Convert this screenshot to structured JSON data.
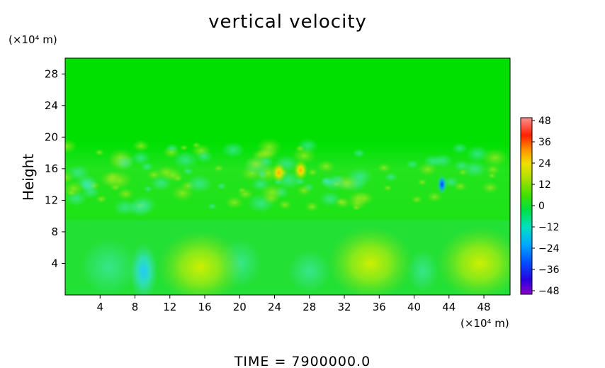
{
  "chart_data": {
    "type": "heatmap",
    "title": "vertical velocity",
    "ylabel": "Height",
    "x_unit": "(×10⁴ m)",
    "y_unit": "(×10⁴ m)",
    "x_ticks": [
      "4",
      "8",
      "12",
      "16",
      "20",
      "24",
      "28",
      "32",
      "36",
      "40",
      "44",
      "48"
    ],
    "y_ticks": [
      "4",
      "8",
      "12",
      "16",
      "20",
      "24",
      "28"
    ],
    "xlim": [
      0,
      51
    ],
    "ylim": [
      0,
      30
    ],
    "colorbar": {
      "ticks": [
        "48",
        "36",
        "24",
        "12",
        "0",
        "−12",
        "−24",
        "−36",
        "−48"
      ],
      "range": [
        -48,
        48
      ],
      "colors": [
        "#8a00c8",
        "#2a00e0",
        "#0040ff",
        "#00a0ff",
        "#00e0e0",
        "#00e0a0",
        "#00e040",
        "#40e000",
        "#a0e000",
        "#e0e000",
        "#ffb000",
        "#ff6000",
        "#ff2000",
        "#ff5050",
        "#ff9090"
      ]
    },
    "background_value": 0,
    "features": [
      {
        "x": 9,
        "y": 3,
        "value": -16
      },
      {
        "x": 15.5,
        "y": 3.5,
        "value": 14
      },
      {
        "x": 24.5,
        "y": 15.5,
        "value": 22
      },
      {
        "x": 27,
        "y": 15.8,
        "value": 24
      },
      {
        "x": 43.2,
        "y": 14,
        "value": -32
      },
      {
        "x": 47.5,
        "y": 4,
        "value": 10
      },
      {
        "x": 35,
        "y": 4,
        "value": 8
      }
    ],
    "time_label": "TIME  =  7900000.0"
  }
}
